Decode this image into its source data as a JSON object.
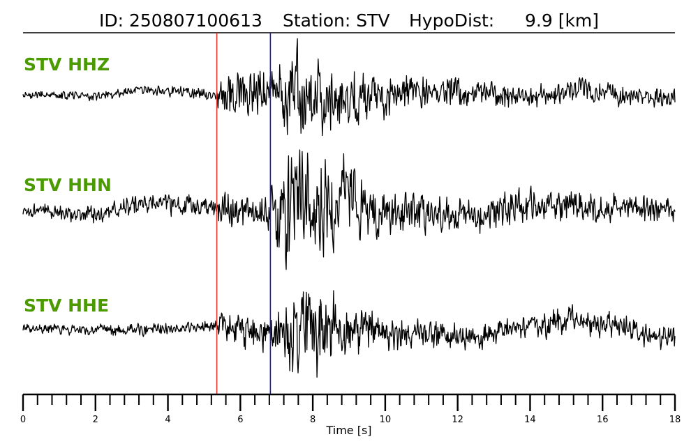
{
  "header": {
    "id_text": "ID: 250807100613",
    "station_text": "Station: STV",
    "hypodist_label": "HypoDist:",
    "hypodist_value": "9.9 [km]"
  },
  "colors": {
    "trace": "#000000",
    "label_green": "#4a9a00",
    "p_pick": "#e8342a",
    "s_pick": "#1a1aa8"
  },
  "chart_data": {
    "type": "line",
    "xlabel": "Time [s]",
    "xlim": [
      0,
      18
    ],
    "major_ticks": [
      0,
      2,
      4,
      6,
      8,
      10,
      12,
      14,
      16,
      18
    ],
    "minor_tick_step": 0.4,
    "picks": [
      {
        "phase": "P",
        "time": 5.35,
        "color": "#e8342a"
      },
      {
        "phase": "S",
        "time": 6.83,
        "color": "#1a1aa8"
      }
    ],
    "series": [
      {
        "name": "STV HHZ",
        "envelope": [
          [
            0,
            0.08
          ],
          [
            3,
            0.1
          ],
          [
            5.35,
            0.12
          ],
          [
            5.4,
            0.45
          ],
          [
            6.8,
            0.55
          ],
          [
            7.3,
            0.85
          ],
          [
            7.6,
            1.0
          ],
          [
            8.5,
            0.65
          ],
          [
            10,
            0.45
          ],
          [
            12,
            0.3
          ],
          [
            14,
            0.25
          ],
          [
            16,
            0.22
          ],
          [
            18,
            0.2
          ]
        ],
        "drift": [
          [
            0,
            0.0
          ],
          [
            2,
            -0.03
          ],
          [
            3.3,
            0.06
          ],
          [
            4.5,
            0.07
          ],
          [
            5.35,
            -0.02
          ],
          [
            7,
            0.04
          ],
          [
            8.6,
            -0.1
          ],
          [
            10,
            0.0
          ],
          [
            12,
            0.05
          ],
          [
            13.8,
            -0.05
          ],
          [
            15.5,
            0.1
          ],
          [
            16.6,
            -0.02
          ],
          [
            18,
            -0.08
          ]
        ]
      },
      {
        "name": "STV HHN",
        "envelope": [
          [
            0,
            0.12
          ],
          [
            3,
            0.18
          ],
          [
            4.5,
            0.2
          ],
          [
            5.35,
            0.2
          ],
          [
            5.4,
            0.3
          ],
          [
            6.8,
            0.35
          ],
          [
            7.2,
            0.95
          ],
          [
            8,
            1.0
          ],
          [
            8.6,
            0.85
          ],
          [
            9.5,
            0.55
          ],
          [
            11,
            0.35
          ],
          [
            13,
            0.3
          ],
          [
            15,
            0.28
          ],
          [
            18,
            0.26
          ]
        ],
        "drift": [
          [
            0,
            0.0
          ],
          [
            2,
            -0.06
          ],
          [
            3.8,
            0.1
          ],
          [
            4.6,
            0.08
          ],
          [
            5.35,
            0.0
          ],
          [
            6.5,
            -0.05
          ],
          [
            7.5,
            0.06
          ],
          [
            9,
            0.1
          ],
          [
            10.5,
            -0.08
          ],
          [
            12.5,
            -0.06
          ],
          [
            14.2,
            0.1
          ],
          [
            16,
            0.03
          ],
          [
            18,
            0.0
          ]
        ]
      },
      {
        "name": "STV HHE",
        "envelope": [
          [
            0,
            0.1
          ],
          [
            3,
            0.13
          ],
          [
            5.35,
            0.14
          ],
          [
            5.4,
            0.35
          ],
          [
            6.8,
            0.4
          ],
          [
            7.2,
            0.75
          ],
          [
            7.8,
            1.0
          ],
          [
            8.6,
            0.8
          ],
          [
            9.5,
            0.5
          ],
          [
            11,
            0.3
          ],
          [
            13,
            0.25
          ],
          [
            15,
            0.3
          ],
          [
            18,
            0.27
          ]
        ],
        "drift": [
          [
            0,
            0.05
          ],
          [
            2,
            0.0
          ],
          [
            4,
            0.04
          ],
          [
            5.35,
            0.08
          ],
          [
            6.5,
            -0.05
          ],
          [
            8,
            0.05
          ],
          [
            10,
            0.0
          ],
          [
            12.5,
            -0.12
          ],
          [
            13.5,
            0.05
          ],
          [
            15.2,
            0.2
          ],
          [
            16.2,
            0.1
          ],
          [
            17.3,
            -0.1
          ],
          [
            18,
            -0.12
          ]
        ]
      }
    ]
  }
}
